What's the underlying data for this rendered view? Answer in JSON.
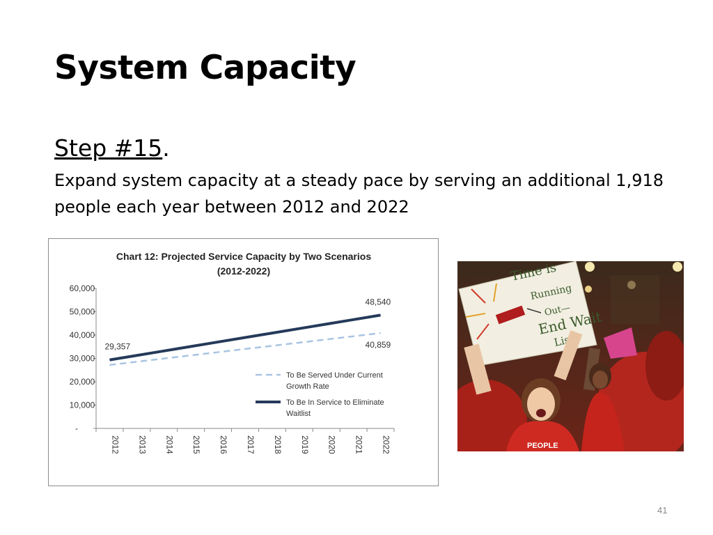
{
  "slide": {
    "title": "System Capacity",
    "step_label": "Step #15",
    "step_punct": ".",
    "body": "Expand system capacity at a steady pace by serving an additional 1,918 people each year between 2012 and 2022",
    "page_number": "41"
  },
  "photo": {
    "sign_text": [
      "Time is",
      "Running",
      "Out—",
      "End Wait",
      "List"
    ],
    "shirt_text": "PEOPLE"
  },
  "chart_data": {
    "type": "line",
    "title": "Chart 12: Projected Service Capacity by Two Scenarios (2012-2022)",
    "title_lines": [
      "Chart 12: Projected Service Capacity by Two Scenarios",
      "(2012-2022)"
    ],
    "x": [
      "2012",
      "2013",
      "2014",
      "2015",
      "2016",
      "2017",
      "2018",
      "2019",
      "2020",
      "2021",
      "2022"
    ],
    "yticks": [
      "-",
      "10,000",
      "20,000",
      "30,000",
      "40,000",
      "50,000",
      "60,000"
    ],
    "ylim": [
      0,
      60000
    ],
    "series": [
      {
        "name": "To Be Served Under Current Growth Rate",
        "legend_lines": [
          "To Be Served Under Current",
          "Growth Rate"
        ],
        "style": "dashed",
        "color": "#a9c4e2",
        "values": [
          27207,
          28572,
          29937,
          31302,
          32667,
          34033,
          35398,
          36763,
          38128,
          39494,
          40859
        ]
      },
      {
        "name": "To Be In Service to Eliminate Waitlist",
        "legend_lines": [
          "To Be In Service to Eliminate",
          "Waitlist"
        ],
        "style": "solid",
        "color": "#253a5a",
        "values": [
          29357,
          31275,
          33193,
          35111,
          37029,
          38948,
          40866,
          42784,
          44702,
          46620,
          48540
        ]
      }
    ],
    "data_labels": [
      "29,357",
      "48,540",
      "40,859"
    ],
    "legend_position": "right",
    "grid": false
  }
}
